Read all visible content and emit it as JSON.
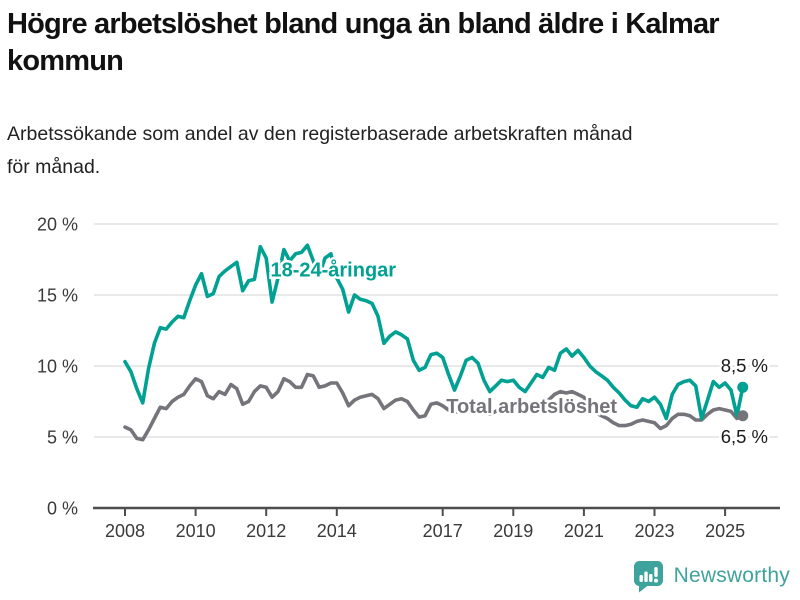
{
  "header": {
    "title": "Högre arbetslöshet bland unga än bland äldre i Kalmar kommun",
    "subtitle": "Arbetssökande som andel av den registerbaserade arbetskraften månad för månad."
  },
  "footer": {
    "brand": "Newsworthy",
    "logo_icon": "bar-chart-speech-bubble-icon"
  },
  "colors": {
    "youth_line": "#00a192",
    "total_line": "#75747a",
    "brand_teal": "#3fa39d",
    "grid": "#dcdcdc",
    "axis": "#4d4d4d",
    "tick_text": "#3a3a3a",
    "value_text": "#1a1a1a"
  },
  "chart_data": {
    "type": "line",
    "title": "Högre arbetslöshet bland unga än bland äldre i Kalmar kommun",
    "subtitle": "Arbetssökande som andel av den registerbaserade arbetskraften månad för månad.",
    "unit": "%",
    "x_start_year": 2008.0,
    "x_step_years": 0.16667,
    "x_end_year": 2025.5,
    "x_ticks": [
      2008,
      2010,
      2012,
      2014,
      2017,
      2019,
      2021,
      2023,
      2025
    ],
    "y_ticks": [
      0,
      5,
      10,
      15,
      20
    ],
    "y_tick_suffix": " %",
    "ylim": [
      0,
      20
    ],
    "xlim": [
      2007.1,
      2026.5
    ],
    "grid": true,
    "legend_position": "inline-labels",
    "series": [
      {
        "name": "Total arbetslöshet",
        "color": "#75747a",
        "end_label": "6,5 %",
        "end_value": 6.5,
        "end_label_grid_anchor": 5,
        "label_x": 2017.1,
        "label_y": 6.7,
        "label_anchor": "start",
        "values": [
          5.7,
          5.5,
          4.9,
          4.8,
          5.5,
          6.3,
          7.1,
          7.0,
          7.5,
          7.8,
          8.0,
          8.6,
          9.1,
          8.9,
          7.9,
          7.7,
          8.2,
          8.0,
          8.7,
          8.4,
          7.3,
          7.5,
          8.2,
          8.6,
          8.5,
          7.8,
          8.2,
          9.1,
          8.9,
          8.5,
          8.5,
          9.4,
          9.3,
          8.5,
          8.6,
          8.8,
          8.8,
          8.1,
          7.2,
          7.6,
          7.8,
          7.9,
          8.0,
          7.7,
          7.0,
          7.3,
          7.6,
          7.7,
          7.5,
          6.9,
          6.4,
          6.5,
          7.3,
          7.4,
          7.2,
          6.9,
          6.7,
          6.9,
          7.1,
          7.0,
          7.1,
          6.8,
          6.6,
          6.8,
          7.0,
          7.0,
          7.0,
          6.9,
          7.0,
          7.2,
          7.3,
          7.4,
          7.6,
          8.0,
          8.2,
          8.1,
          8.2,
          8.0,
          7.8,
          7.0,
          6.7,
          6.5,
          6.3,
          6.0,
          5.8,
          5.8,
          5.9,
          6.1,
          6.2,
          6.1,
          6.0,
          5.6,
          5.8,
          6.3,
          6.6,
          6.6,
          6.5,
          6.2,
          6.2,
          6.6,
          6.9,
          7.0,
          6.9,
          6.8,
          6.3,
          6.5
        ]
      },
      {
        "name": "18-24-åringar",
        "color": "#00a192",
        "end_label": "8,5 %",
        "end_value": 8.5,
        "end_label_grid_anchor": 10,
        "label_x": 2013.9,
        "label_y": 16.3,
        "label_anchor": "middle",
        "values": [
          10.3,
          9.6,
          8.4,
          7.4,
          9.8,
          11.6,
          12.7,
          12.6,
          13.1,
          13.5,
          13.4,
          14.6,
          15.7,
          16.5,
          14.9,
          15.1,
          16.3,
          16.7,
          17.0,
          17.3,
          15.3,
          16.0,
          16.1,
          18.4,
          17.6,
          14.5,
          16.2,
          18.2,
          17.4,
          17.9,
          18.0,
          18.5,
          17.4,
          16.4,
          17.6,
          17.9,
          16.2,
          15.4,
          13.8,
          15.0,
          14.7,
          14.6,
          14.4,
          13.5,
          11.6,
          12.1,
          12.4,
          12.2,
          11.9,
          10.4,
          9.7,
          9.9,
          10.8,
          10.9,
          10.6,
          9.4,
          8.3,
          9.3,
          10.4,
          10.6,
          10.2,
          9.0,
          8.2,
          8.6,
          9.0,
          8.9,
          9.0,
          8.5,
          8.2,
          8.8,
          9.4,
          9.2,
          9.9,
          9.7,
          10.9,
          11.2,
          10.7,
          11.1,
          10.6,
          10.0,
          9.6,
          9.3,
          9.0,
          8.5,
          8.1,
          7.6,
          7.2,
          7.1,
          7.7,
          7.5,
          7.8,
          7.3,
          6.3,
          8.0,
          8.7,
          8.9,
          9.0,
          8.6,
          6.3,
          7.6,
          8.9,
          8.5,
          8.8,
          8.3,
          6.5,
          8.5
        ]
      }
    ]
  }
}
